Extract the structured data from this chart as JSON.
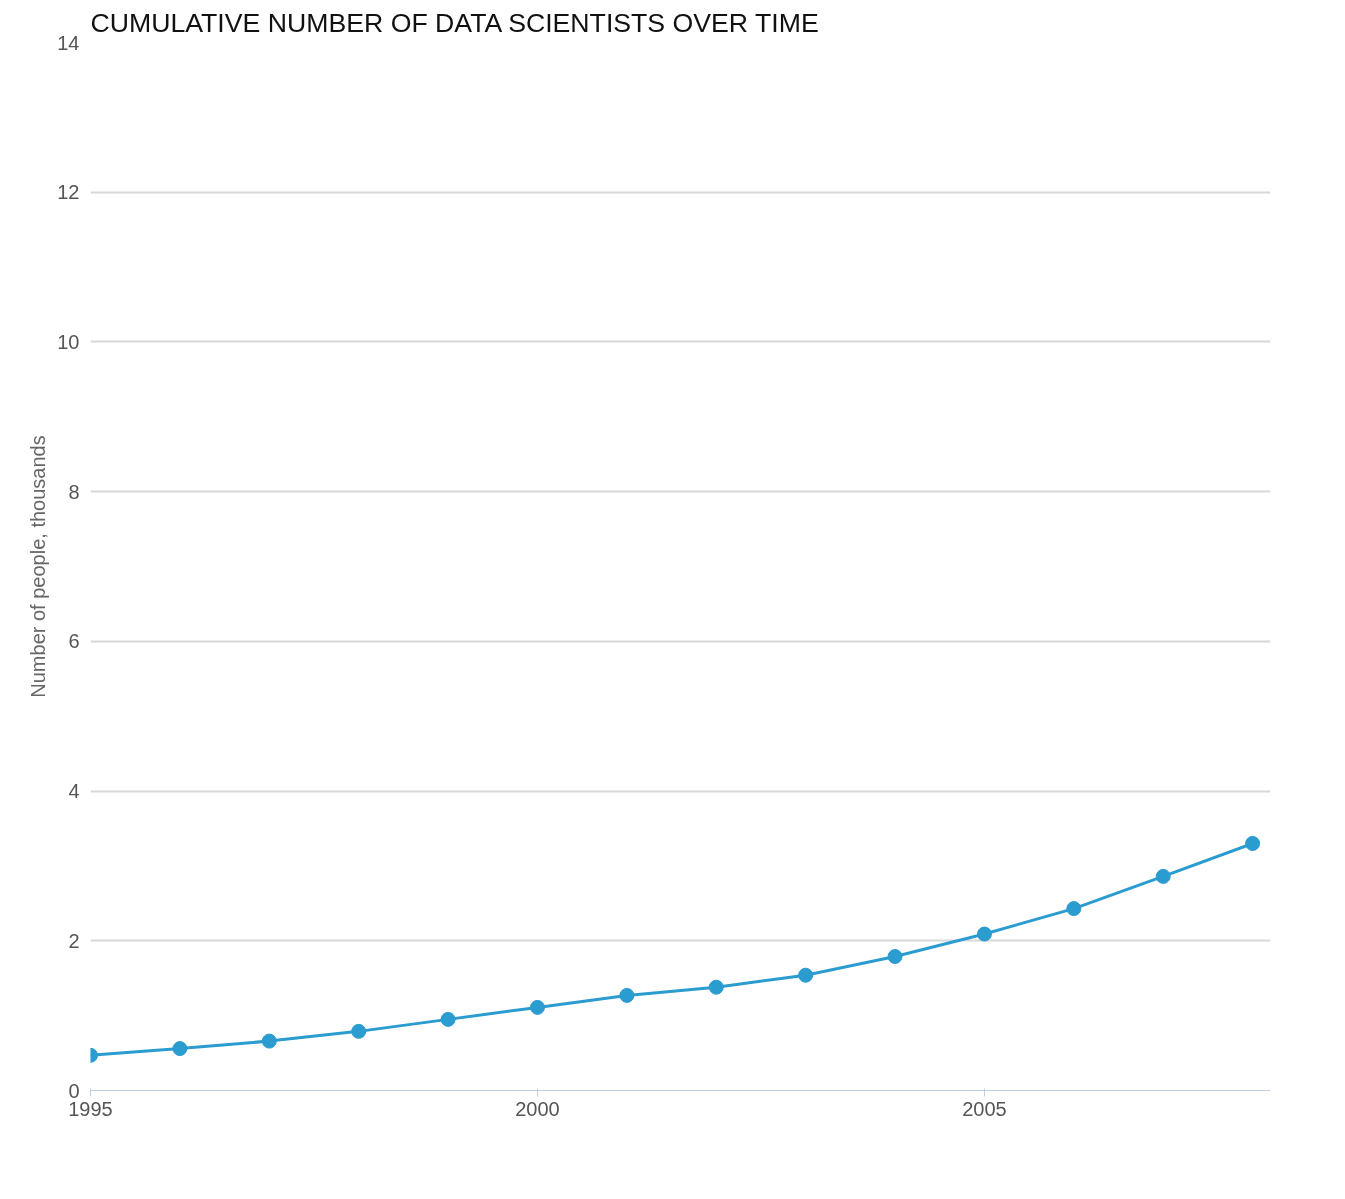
{
  "chart_data": {
    "type": "line",
    "title": "CUMULATIVE NUMBER OF DATA SCIENTISTS OVER TIME",
    "ylabel": "Number of people, thousands",
    "x": [
      1995,
      1996,
      1997,
      1998,
      1999,
      2000,
      2001,
      2002,
      2003,
      2004,
      2005,
      2006,
      2007,
      2008
    ],
    "series": [
      {
        "color": "#2b9ccf",
        "values": [
          0.47,
          0.56,
          0.66,
          0.79,
          0.95,
          1.11,
          1.27,
          1.38,
          1.54,
          1.79,
          2.09,
          2.43,
          2.86,
          3.3
        ]
      }
    ],
    "xlim": [
      1995,
      2008.2
    ],
    "xticks": [
      1995,
      2000,
      2005
    ],
    "ylim": [
      0,
      14
    ],
    "yticks": [
      0,
      2,
      4,
      6,
      8,
      10,
      12,
      14
    ],
    "grid": "y",
    "marker": "circle",
    "line_style": "solid"
  }
}
